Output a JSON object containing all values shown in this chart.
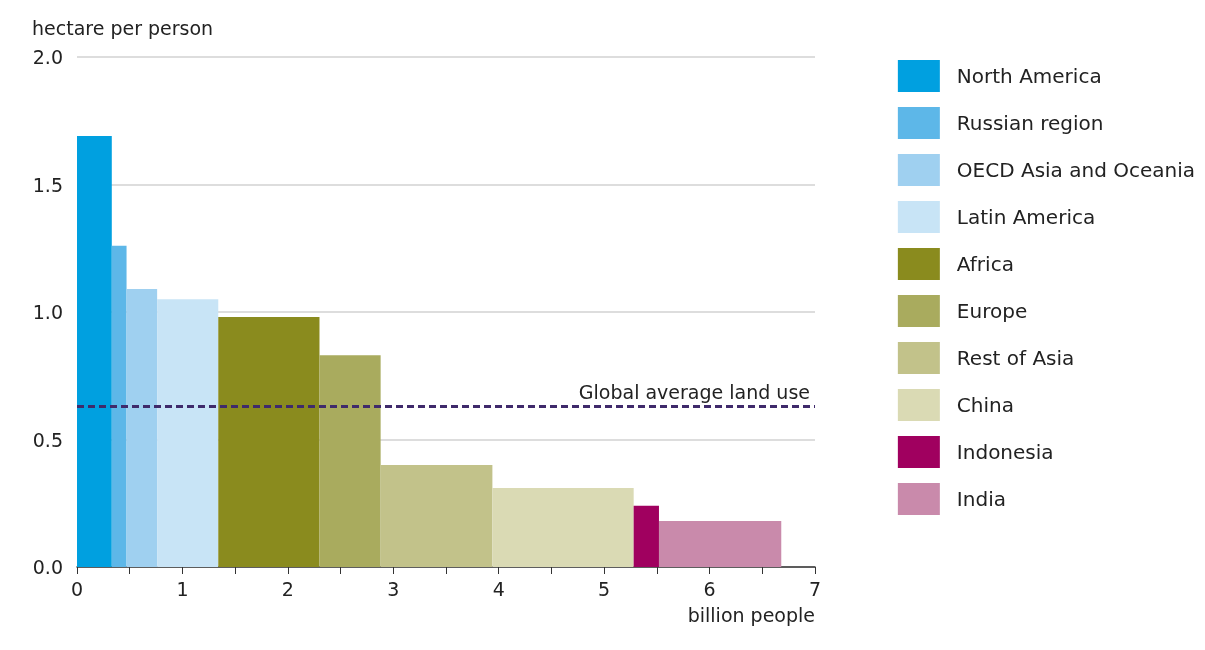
{
  "chart_data": {
    "type": "histogram",
    "xlabel": "billion people",
    "ylabel": "hectare per person",
    "bins": [
      0,
      0.33,
      0.47,
      0.76,
      1.34,
      2.3,
      2.88,
      3.94,
      5.28,
      5.52,
      6.68
    ],
    "series": [
      {
        "name": "North America",
        "color": "#00a0e0",
        "values": [
          1.69,
          null,
          null,
          null,
          null,
          null,
          null,
          null,
          null,
          null
        ]
      },
      {
        "name": "Russian region",
        "color": "#5db7e8",
        "values": [
          null,
          1.26,
          null,
          null,
          null,
          null,
          null,
          null,
          null,
          null
        ]
      },
      {
        "name": "OECD Asia and Oceania",
        "color": "#9fd0f0",
        "values": [
          null,
          null,
          1.09,
          null,
          null,
          null,
          null,
          null,
          null,
          null
        ]
      },
      {
        "name": "Latin America",
        "color": "#c8e4f6",
        "values": [
          null,
          null,
          null,
          1.05,
          null,
          null,
          null,
          null,
          null,
          null
        ]
      },
      {
        "name": "Africa",
        "color": "#8a8b1e",
        "values": [
          null,
          null,
          null,
          null,
          0.98,
          null,
          null,
          null,
          null,
          null
        ]
      },
      {
        "name": "Europe",
        "color": "#a9ab5e",
        "values": [
          null,
          null,
          null,
          null,
          null,
          0.83,
          null,
          null,
          null,
          null
        ]
      },
      {
        "name": "Rest of Asia",
        "color": "#c2c28a",
        "values": [
          null,
          null,
          null,
          null,
          null,
          null,
          0.4,
          null,
          null,
          null
        ]
      },
      {
        "name": "China",
        "color": "#dadab4",
        "values": [
          null,
          null,
          null,
          null,
          null,
          null,
          null,
          0.31,
          null,
          null
        ]
      },
      {
        "name": "Indonesia",
        "color": "#a0005f",
        "values": [
          null,
          null,
          null,
          null,
          null,
          null,
          null,
          null,
          0.24,
          null
        ]
      },
      {
        "name": "India",
        "color": "#c98aab",
        "values": [
          null,
          null,
          null,
          null,
          null,
          null,
          null,
          null,
          null,
          0.18
        ]
      }
    ],
    "xlim": [
      0,
      7
    ],
    "xticks": [
      0,
      {
        "value": 0.5,
        "label": null
      },
      1,
      {
        "value": 1.5,
        "label": null
      },
      2,
      {
        "value": 2.5,
        "label": null
      },
      3,
      {
        "value": 3.5,
        "label": null
      },
      4,
      {
        "value": 4.5,
        "label": null
      },
      5,
      {
        "value": 5.5,
        "label": null
      },
      6,
      {
        "value": 6.5,
        "label": null
      },
      7
    ],
    "ylim": [
      0,
      2
    ],
    "yticks": [
      {
        "value": 0,
        "label": "0.0"
      },
      {
        "value": 0.5,
        "label": "0.5"
      },
      {
        "value": 1,
        "label": "1.0"
      },
      {
        "value": 1.5,
        "label": "1.5"
      },
      {
        "value": 2,
        "label": "2.0"
      }
    ],
    "grid": "y",
    "legend": "right",
    "ref_lines": [
      {
        "axis": "y",
        "value": 0.63,
        "label": "Global average land use",
        "color": "#3f2a6b",
        "line_style": "dashed"
      }
    ]
  }
}
